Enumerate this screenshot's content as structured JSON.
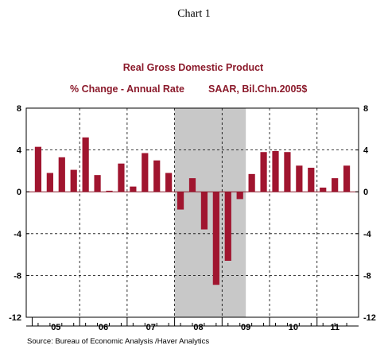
{
  "header": {
    "chart_label": "Chart 1"
  },
  "chart_data": {
    "type": "bar",
    "title": "Real Gross Domestic Product",
    "subtitle_left": "% Change - Annual Rate",
    "subtitle_right": "SAAR, Bil.Chn.2005$",
    "source": "Source:  Bureau of Economic Analysis /Haver Analytics",
    "ylim": [
      -12,
      8
    ],
    "yticks": [
      8,
      4,
      0,
      -4,
      -8,
      -12
    ],
    "ytick_labels": [
      "8",
      "4",
      "0",
      "-4",
      "-8",
      "-12"
    ],
    "x_labels": [
      "05",
      "06",
      "07",
      "08",
      "09",
      "10",
      "11"
    ],
    "year_start_index": [
      0,
      4,
      8,
      12,
      16,
      20,
      24
    ],
    "categories": [
      "2005Q1",
      "2005Q2",
      "2005Q3",
      "2005Q4",
      "2006Q1",
      "2006Q2",
      "2006Q3",
      "2006Q4",
      "2007Q1",
      "2007Q2",
      "2007Q3",
      "2007Q4",
      "2008Q1",
      "2008Q2",
      "2008Q3",
      "2008Q4",
      "2009Q1",
      "2009Q2",
      "2009Q3",
      "2009Q4",
      "2010Q1",
      "2010Q2",
      "2010Q3",
      "2010Q4",
      "2011Q1",
      "2011Q2",
      "2011Q3"
    ],
    "values": [
      4.3,
      1.8,
      3.3,
      2.1,
      5.2,
      1.6,
      0.1,
      2.7,
      0.5,
      3.7,
      3.0,
      1.8,
      -1.7,
      1.3,
      -3.6,
      -8.9,
      -6.6,
      -0.7,
      1.7,
      3.8,
      3.9,
      3.8,
      2.5,
      2.3,
      0.4,
      1.3,
      2.5
    ],
    "recession_shading": {
      "from": "2008Q1",
      "to": "2009Q2"
    },
    "grid": "dashed",
    "bar_color": "#a0152f",
    "shading_color": "#c8c8c8"
  }
}
